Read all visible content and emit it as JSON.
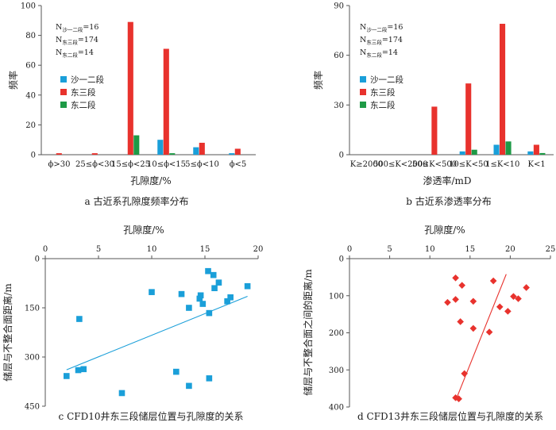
{
  "chart_data": [
    {
      "id": "a",
      "type": "bar",
      "caption": "a  古近系孔隙度频率分布",
      "xlabel": "孔隙度/%",
      "ylabel": "频率",
      "ylim": [
        0,
        100
      ],
      "yticks": [
        0,
        20,
        40,
        60,
        80,
        100
      ],
      "categories": [
        "ϕ>30",
        "25≤ϕ<30",
        "15≤ϕ<25",
        "10≤ϕ<15",
        "5≤ϕ<10",
        "ϕ<5"
      ],
      "series": [
        {
          "name": "沙一二段",
          "color": "#1a9fd9",
          "values": [
            0,
            0,
            0,
            10,
            5,
            1
          ]
        },
        {
          "name": "东三段",
          "color": "#e8322d",
          "values": [
            1,
            1,
            89,
            71,
            8,
            4
          ]
        },
        {
          "name": "东二段",
          "color": "#1e9a46",
          "values": [
            0,
            0,
            13,
            1,
            0,
            0
          ]
        }
      ],
      "annotations": [
        {
          "prefix": "N",
          "sub": "沙一二段",
          "suffix": "=16"
        },
        {
          "prefix": "N",
          "sub": "东三段",
          "suffix": "=174"
        },
        {
          "prefix": "N",
          "sub": "东二段",
          "suffix": "=14"
        }
      ]
    },
    {
      "id": "b",
      "type": "bar",
      "caption": "b  古近系渗透率分布",
      "xlabel": "渗透率/mD",
      "ylabel": "频率",
      "ylim": [
        0,
        90
      ],
      "yticks": [
        0,
        30,
        60,
        90
      ],
      "categories": [
        "K≥2000",
        "500≤K<2000",
        "50≤K<500",
        "10≤K<50",
        "1≤K<10",
        "K<1"
      ],
      "series": [
        {
          "name": "沙一二段",
          "color": "#1a9fd9",
          "values": [
            0,
            0,
            0,
            2,
            6,
            2
          ]
        },
        {
          "name": "东三段",
          "color": "#e8322d",
          "values": [
            0,
            0,
            29,
            43,
            79,
            6
          ]
        },
        {
          "name": "东二段",
          "color": "#1e9a46",
          "values": [
            0,
            0,
            0,
            3,
            8,
            1
          ]
        }
      ],
      "annotations": [
        {
          "prefix": "N",
          "sub": "沙一二段",
          "suffix": "=16"
        },
        {
          "prefix": "N",
          "sub": "东三段",
          "suffix": "=174"
        },
        {
          "prefix": "N",
          "sub": "东二段",
          "suffix": "=14"
        }
      ]
    },
    {
      "id": "c",
      "type": "scatter",
      "caption": "c  CFD10井东三段储层位置与孔隙度的关系",
      "xlabel": "孔隙度/%",
      "ylabel": "储层与不整合面距离/m",
      "xlim": [
        0,
        20
      ],
      "xticks": [
        0,
        5,
        10,
        15,
        20
      ],
      "ylim": [
        0,
        450
      ],
      "yticks": [
        0,
        150,
        300,
        450
      ],
      "y_inverted": true,
      "marker": "square",
      "color": "#1a9fd9",
      "points": [
        [
          15.3,
          38
        ],
        [
          15.8,
          50
        ],
        [
          16.3,
          73
        ],
        [
          19.0,
          84
        ],
        [
          15.9,
          90
        ],
        [
          10.0,
          102
        ],
        [
          12.8,
          108
        ],
        [
          14.6,
          112
        ],
        [
          14.5,
          122
        ],
        [
          17.4,
          118
        ],
        [
          17.1,
          130
        ],
        [
          14.8,
          138
        ],
        [
          13.5,
          150
        ],
        [
          15.4,
          166
        ],
        [
          3.2,
          184
        ],
        [
          3.1,
          340
        ],
        [
          3.6,
          337
        ],
        [
          2.0,
          358
        ],
        [
          12.3,
          345
        ],
        [
          7.2,
          410
        ],
        [
          13.5,
          388
        ],
        [
          15.4,
          365
        ]
      ],
      "trendline": {
        "x1": 2.0,
        "y1": 339,
        "x2": 19.0,
        "y2": 115
      }
    },
    {
      "id": "d",
      "type": "scatter",
      "caption": "d  CFD13井东三段储层位置与孔隙度的关系",
      "xlabel": "孔隙度/%",
      "ylabel": "储层与不整合面之间的距离/m",
      "xlim": [
        0,
        25
      ],
      "xticks": [
        0,
        5,
        10,
        15,
        20,
        25
      ],
      "ylim": [
        0,
        400
      ],
      "yticks": [
        0,
        100,
        200,
        300,
        400
      ],
      "y_inverted": true,
      "marker": "diamond",
      "color": "#e8322d",
      "points": [
        [
          13.2,
          52
        ],
        [
          14.0,
          72
        ],
        [
          17.9,
          60
        ],
        [
          22.0,
          78
        ],
        [
          12.2,
          118
        ],
        [
          13.2,
          110
        ],
        [
          15.4,
          115
        ],
        [
          18.7,
          130
        ],
        [
          19.7,
          142
        ],
        [
          20.4,
          102
        ],
        [
          21.0,
          108
        ],
        [
          13.8,
          170
        ],
        [
          15.4,
          188
        ],
        [
          17.4,
          198
        ],
        [
          14.3,
          310
        ],
        [
          13.2,
          375
        ],
        [
          13.6,
          378
        ]
      ],
      "trendline": {
        "x1": 13.4,
        "y1": 372,
        "x2": 19.5,
        "y2": 42
      }
    }
  ]
}
